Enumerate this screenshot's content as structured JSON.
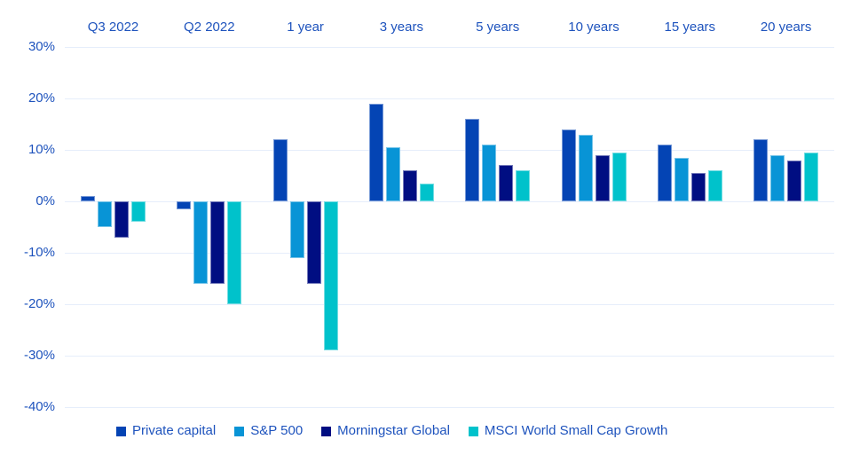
{
  "chart_data": {
    "type": "bar",
    "title": "",
    "xlabel": "",
    "ylabel": "",
    "categories": [
      "Q3 2022",
      "Q2 2022",
      "1 year",
      "3 years",
      "5 years",
      "10 years",
      "15 years",
      "20 years"
    ],
    "series": [
      {
        "name": "Private capital",
        "color": "#0444b4",
        "values": [
          1,
          -1.5,
          12,
          19,
          16,
          14,
          11,
          12
        ]
      },
      {
        "name": "S&P 500",
        "color": "#0894d6",
        "values": [
          -5,
          -16,
          -11,
          10.5,
          11,
          13,
          8.5,
          9
        ]
      },
      {
        "name": "Morningstar Global",
        "color": "#000e82",
        "values": [
          -7,
          -16,
          -16,
          6,
          7,
          9,
          5.5,
          8
        ]
      },
      {
        "name": "MSCI World Small Cap Growth",
        "color": "#00c2cb",
        "values": [
          -4,
          -20,
          -29,
          3.5,
          6,
          9.5,
          6,
          9.5
        ]
      }
    ],
    "y_ticks": [
      {
        "label": "30%",
        "value": 30
      },
      {
        "label": "20%",
        "value": 20
      },
      {
        "label": "10%",
        "value": 10
      },
      {
        "label": "0%",
        "value": 0
      },
      {
        "label": "-10%",
        "value": -10
      },
      {
        "label": "-20%",
        "value": -20
      },
      {
        "label": "-30%",
        "value": -30
      },
      {
        "label": "-40%",
        "value": -40
      }
    ],
    "ylim": [
      -40,
      30
    ],
    "grid": true,
    "category_axis_position": "top",
    "legend_position": "bottom",
    "axis_text_color": "#1e53bd",
    "gridline_color": "#e6eefb"
  }
}
